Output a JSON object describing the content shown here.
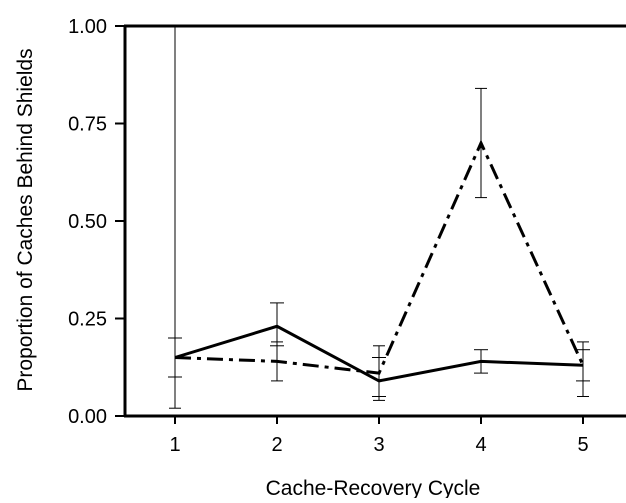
{
  "chart_data": {
    "type": "line",
    "title": "",
    "xlabel": "Cache-Recovery Cycle",
    "ylabel": "Proportion of Caches Behind Shields",
    "x": [
      1,
      2,
      3,
      4,
      5
    ],
    "x_tick_labels": [
      "1",
      "2",
      "3",
      "4",
      "5"
    ],
    "y_ticks": [
      0,
      0.25,
      0.5,
      0.75,
      1.0
    ],
    "y_tick_labels": [
      "0.00",
      "0.25",
      "0.50",
      "0.75",
      "1.00"
    ],
    "ylim": [
      0,
      1.0
    ],
    "xlim": [
      0.5,
      5.5
    ],
    "grid": false,
    "legend": "none",
    "series": [
      {
        "style": "solid",
        "values": [
          0.15,
          0.23,
          0.09,
          0.14,
          0.13
        ],
        "error_low": [
          0.1,
          0.18,
          0.05,
          0.11,
          0.09
        ],
        "error_high": [
          0.2,
          0.29,
          0.15,
          0.17,
          0.17
        ]
      },
      {
        "style": "dash-dot",
        "values": [
          0.15,
          0.14,
          0.11,
          0.7,
          0.13
        ],
        "error_low": [
          0.02,
          0.09,
          0.04,
          0.56,
          0.05
        ],
        "error_high": [
          1.0,
          0.19,
          0.18,
          0.84,
          0.19
        ]
      }
    ]
  }
}
